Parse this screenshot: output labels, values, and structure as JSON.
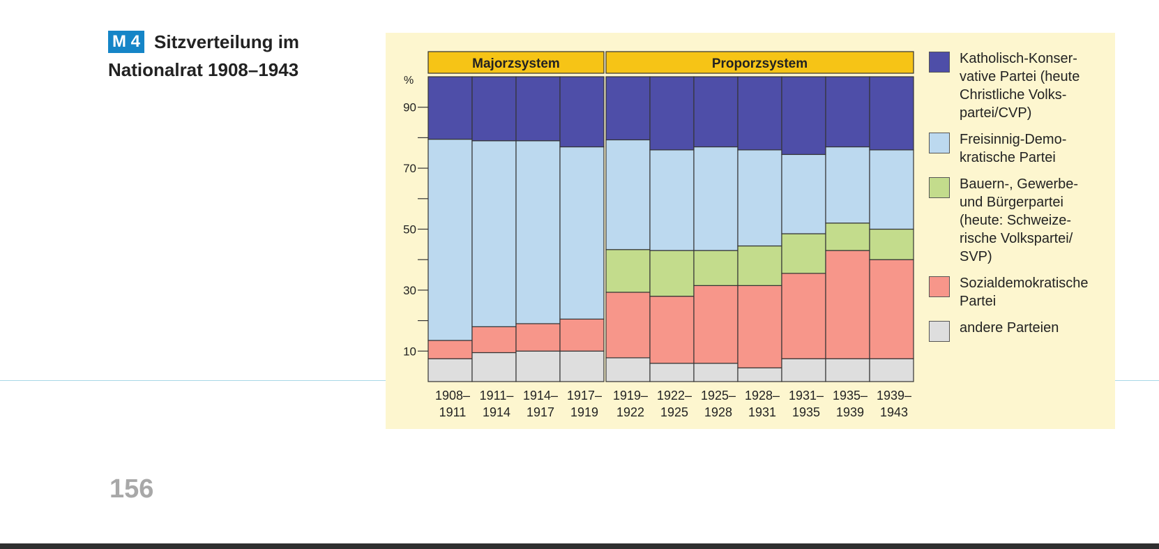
{
  "heading": {
    "badge": "M 4",
    "title": "Sitzverteilung im",
    "title2": "Nationalrat 1908–1943"
  },
  "page_number": "156",
  "legend": [
    {
      "name": "Katholisch-Konservative",
      "text": "Katholisch-Konser-\nvative Partei (heute\nChristliche Volks-\npartei/CVP)",
      "color": "#4e4ea8"
    },
    {
      "name": "Freisinnig-Demokratische",
      "text": "Freisinnig-Demo-\nkratische Partei",
      "color": "#bcd9ef"
    },
    {
      "name": "Bauern-, Gewerbe- und Bürgerpartei",
      "text": "Bauern-, Gewerbe-\nund Bürgerpartei\n(heute: Schweize-\nrische Volkspartei/\nSVP)",
      "color": "#c3dc8c"
    },
    {
      "name": "Sozialdemokratische Partei",
      "text": "Sozialdemokratische\nPartei",
      "color": "#f7968a"
    },
    {
      "name": "andere Parteien",
      "text": "andere Parteien",
      "color": "#dedede"
    }
  ],
  "chart_data": {
    "type": "bar",
    "stacked": true,
    "title": "Sitzverteilung im Nationalrat 1908–1943",
    "ylabel": "%",
    "ylim": [
      0,
      100
    ],
    "yticks": [
      10,
      30,
      50,
      70,
      90
    ],
    "ytick_labels": [
      "10",
      "30",
      "50",
      "70",
      "90"
    ],
    "minor_yticks": [
      20,
      40,
      60,
      80
    ],
    "groups": [
      {
        "label": "Majorzsystem",
        "categories": [
          0,
          3
        ]
      },
      {
        "label": "Proporzsystem",
        "categories": [
          4,
          10
        ]
      }
    ],
    "categories": [
      "1908–1911",
      "1911–1914",
      "1914–1917",
      "1917–1919",
      "1919–1922",
      "1922–1925",
      "1925–1928",
      "1928–1931",
      "1931–1935",
      "1935–1939",
      "1939–1943"
    ],
    "category_lines": [
      [
        "1908–",
        "1911"
      ],
      [
        "1911–",
        "1914"
      ],
      [
        "1914–",
        "1917"
      ],
      [
        "1917–",
        "1919"
      ],
      [
        "1919–",
        "1922"
      ],
      [
        "1922–",
        "1925"
      ],
      [
        "1925–",
        "1928"
      ],
      [
        "1928–",
        "1931"
      ],
      [
        "1931–",
        "1935"
      ],
      [
        "1935–",
        "1939"
      ],
      [
        "1939–",
        "1943"
      ]
    ],
    "series": [
      {
        "name": "andere Parteien",
        "color": "#dedede",
        "values": [
          7.5,
          9.5,
          10,
          10,
          7.8,
          6,
          6,
          4.5,
          7.5,
          7.5,
          7.5
        ]
      },
      {
        "name": "Sozialdemokratische Partei",
        "color": "#f7968a",
        "values": [
          6,
          8.5,
          9,
          10.5,
          21.5,
          22,
          25.5,
          27,
          28,
          35.5,
          32.5
        ]
      },
      {
        "name": "Bauern-, Gewerbe- und Bürgerpartei",
        "color": "#c3dc8c",
        "values": [
          0,
          0,
          0,
          0,
          14,
          15,
          11.5,
          13,
          13,
          9,
          10
        ]
      },
      {
        "name": "Freisinnig-Demokratische Partei",
        "color": "#bcd9ef",
        "values": [
          66,
          61,
          60,
          56.5,
          36,
          33,
          34,
          31.5,
          26,
          25,
          26
        ]
      },
      {
        "name": "Katholisch-Konservative Partei",
        "color": "#4e4ea8",
        "values": [
          20.5,
          21,
          21,
          23,
          20.7,
          24,
          23,
          24,
          25.5,
          23,
          24
        ]
      }
    ]
  }
}
